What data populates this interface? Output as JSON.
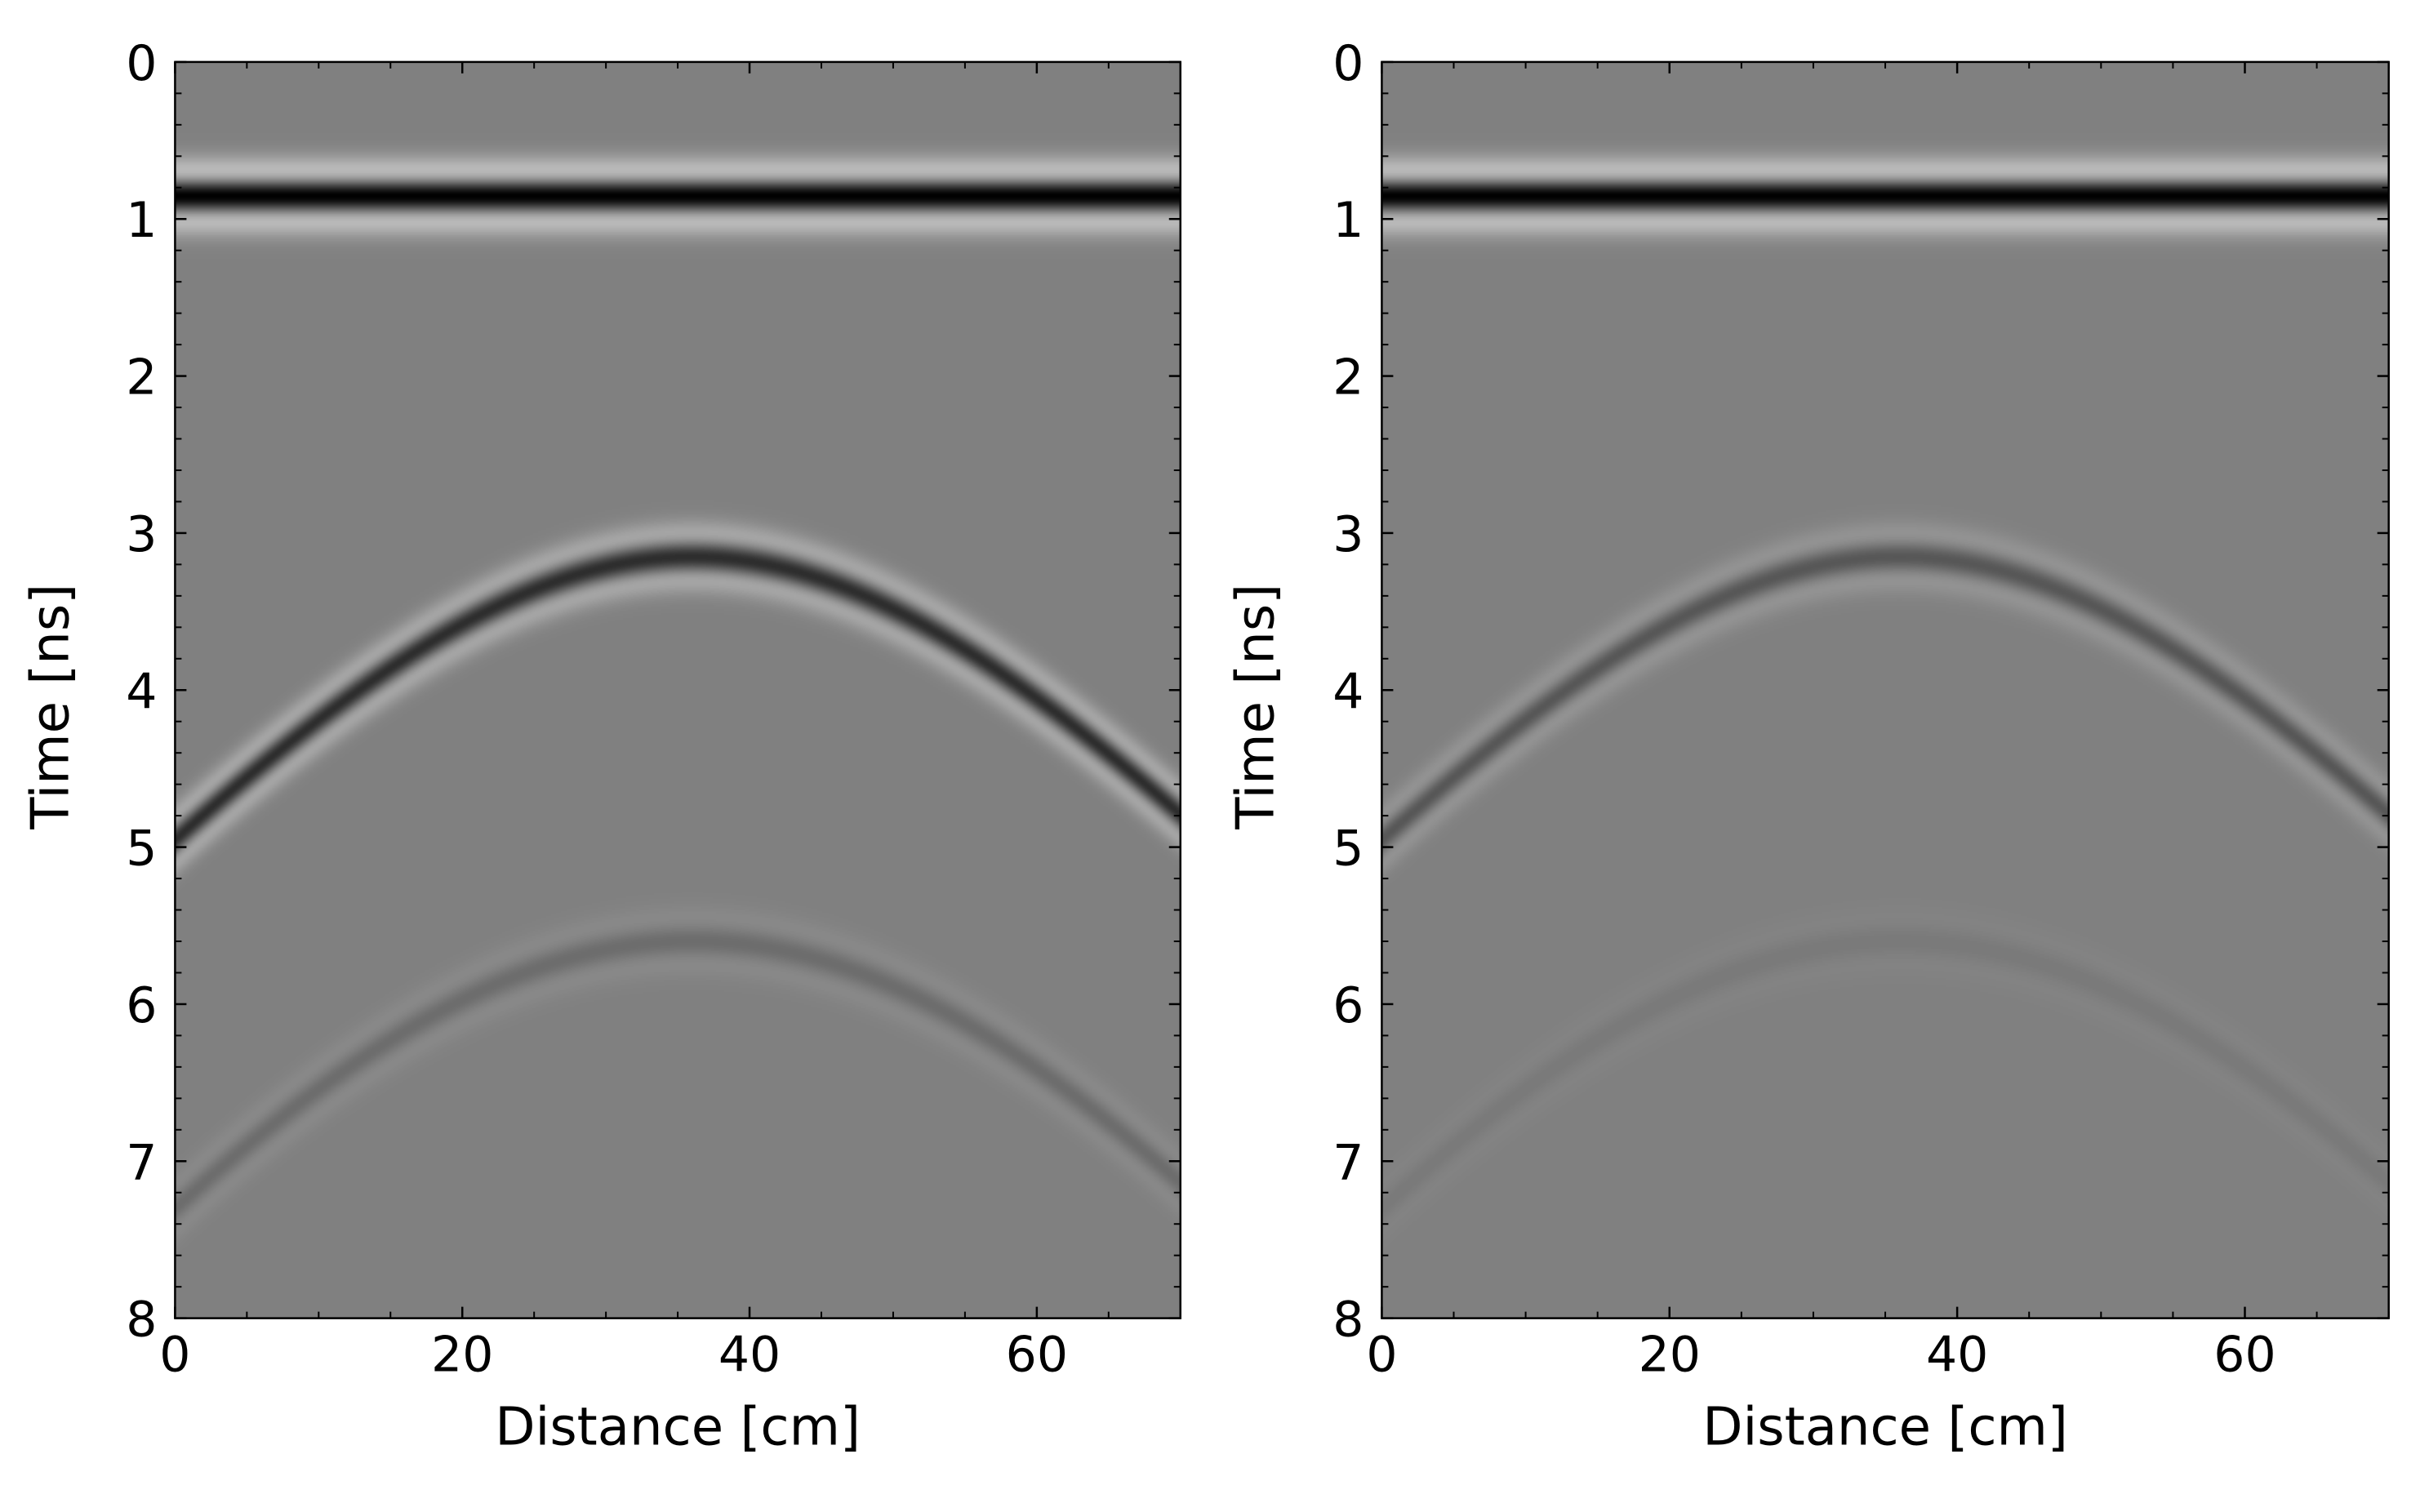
{
  "chart_data": [
    {
      "type": "heatmap",
      "panel": "left",
      "colormap": "grayscale",
      "xlabel": "Distance [cm]",
      "ylabel": "Time [ns]",
      "xlim": [
        0,
        70
      ],
      "ylim": [
        8,
        0
      ],
      "x_ticks": [
        0,
        20,
        40,
        60
      ],
      "y_ticks": [
        0,
        1,
        2,
        3,
        4,
        5,
        6,
        7,
        8
      ],
      "direct_wave": {
        "time_ns": 0.85,
        "amplitude": 1.0
      },
      "hyperbolas": [
        {
          "apex_distance_cm": 36,
          "apex_time_ns": 3.15,
          "edge_time_ns": 4.95,
          "amplitude": 0.65
        },
        {
          "apex_distance_cm": 36,
          "apex_time_ns": 5.6,
          "edge_time_ns": 7.3,
          "amplitude": 0.15
        }
      ],
      "grid": false
    },
    {
      "type": "heatmap",
      "panel": "right",
      "colormap": "grayscale",
      "xlabel": "Distance [cm]",
      "ylabel": "Time [ns]",
      "xlim": [
        0,
        70
      ],
      "ylim": [
        8,
        0
      ],
      "x_ticks": [
        0,
        20,
        40,
        60
      ],
      "y_ticks": [
        0,
        1,
        2,
        3,
        4,
        5,
        6,
        7,
        8
      ],
      "direct_wave": {
        "time_ns": 0.85,
        "amplitude": 1.0
      },
      "hyperbolas": [
        {
          "apex_distance_cm": 36,
          "apex_time_ns": 3.15,
          "edge_time_ns": 4.95,
          "amplitude": 0.32
        },
        {
          "apex_distance_cm": 36,
          "apex_time_ns": 5.6,
          "edge_time_ns": 7.3,
          "amplitude": 0.05
        }
      ],
      "grid": false
    }
  ]
}
